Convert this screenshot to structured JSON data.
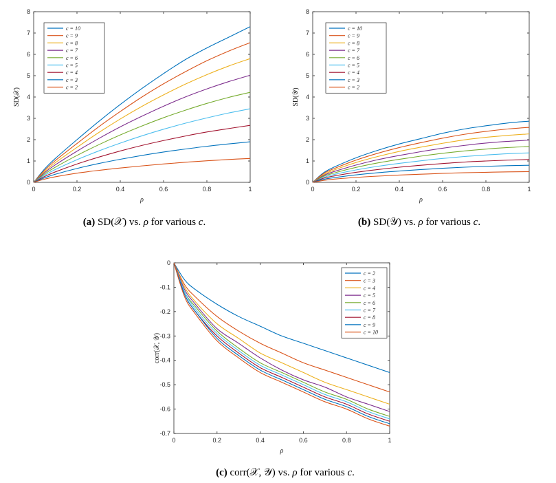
{
  "chart_data": [
    {
      "id": "a",
      "type": "line",
      "xlabel": "ρ",
      "ylabel": "SD(𝒳)",
      "xlim": [
        0,
        1
      ],
      "ylim": [
        0,
        8
      ],
      "xticks": [
        0,
        0.2,
        0.4,
        0.6,
        0.8,
        1
      ],
      "xtick_labels": [
        "0",
        "0.2",
        "0.4",
        "0.6",
        "0.8",
        "1"
      ],
      "yticks": [
        0,
        1,
        2,
        3,
        4,
        5,
        6,
        7,
        8
      ],
      "ytick_labels": [
        "0",
        "1",
        "2",
        "3",
        "4",
        "5",
        "6",
        "7",
        "8"
      ],
      "legend_position": "top-left",
      "x": [
        0,
        0.05,
        0.1,
        0.2,
        0.3,
        0.4,
        0.5,
        0.6,
        0.7,
        0.8,
        0.9,
        1
      ],
      "series": [
        {
          "name": "c = 10",
          "color": "#0072BD",
          "values": [
            0,
            0.62,
            1.12,
            2.0,
            2.85,
            3.65,
            4.4,
            5.1,
            5.75,
            6.3,
            6.8,
            7.3
          ]
        },
        {
          "name": "c = 9",
          "color": "#D95319",
          "values": [
            0,
            0.56,
            1.02,
            1.82,
            2.6,
            3.32,
            4.0,
            4.62,
            5.18,
            5.7,
            6.15,
            6.55
          ]
        },
        {
          "name": "c = 8",
          "color": "#EDB120",
          "values": [
            0,
            0.5,
            0.92,
            1.64,
            2.33,
            2.97,
            3.56,
            4.1,
            4.6,
            5.05,
            5.45,
            5.8
          ]
        },
        {
          "name": "c = 7",
          "color": "#7E2F8E",
          "values": [
            0,
            0.45,
            0.82,
            1.46,
            2.05,
            2.6,
            3.1,
            3.57,
            4.0,
            4.38,
            4.72,
            5.02
          ]
        },
        {
          "name": "c = 6",
          "color": "#77AC30",
          "values": [
            0,
            0.39,
            0.71,
            1.26,
            1.76,
            2.22,
            2.64,
            3.03,
            3.38,
            3.7,
            3.98,
            4.22
          ]
        },
        {
          "name": "c = 5",
          "color": "#4DBEEE",
          "values": [
            0,
            0.33,
            0.6,
            1.06,
            1.47,
            1.84,
            2.18,
            2.49,
            2.77,
            3.02,
            3.25,
            3.45
          ]
        },
        {
          "name": "c = 4",
          "color": "#A2142F",
          "values": [
            0,
            0.27,
            0.49,
            0.86,
            1.18,
            1.47,
            1.73,
            1.96,
            2.17,
            2.36,
            2.52,
            2.67
          ]
        },
        {
          "name": "c = 3",
          "color": "#0072BD",
          "values": [
            0,
            0.21,
            0.38,
            0.65,
            0.88,
            1.08,
            1.26,
            1.42,
            1.56,
            1.69,
            1.8,
            1.9
          ]
        },
        {
          "name": "c = 2",
          "color": "#D95319",
          "values": [
            0,
            0.15,
            0.26,
            0.43,
            0.56,
            0.67,
            0.77,
            0.86,
            0.94,
            1.01,
            1.07,
            1.12
          ]
        }
      ]
    },
    {
      "id": "b",
      "type": "line",
      "xlabel": "ρ",
      "ylabel": "SD(𝒴)",
      "xlim": [
        0,
        1
      ],
      "ylim": [
        0,
        8
      ],
      "xticks": [
        0,
        0.2,
        0.4,
        0.6,
        0.8,
        1
      ],
      "xtick_labels": [
        "0",
        "0.2",
        "0.4",
        "0.6",
        "0.8",
        "1"
      ],
      "yticks": [
        0,
        1,
        2,
        3,
        4,
        5,
        6,
        7,
        8
      ],
      "ytick_labels": [
        "0",
        "1",
        "2",
        "3",
        "4",
        "5",
        "6",
        "7",
        "8"
      ],
      "legend_position": "top-left",
      "x": [
        0,
        0.05,
        0.1,
        0.2,
        0.3,
        0.4,
        0.5,
        0.6,
        0.7,
        0.8,
        0.9,
        1
      ],
      "series": [
        {
          "name": "c = 10",
          "color": "#0072BD",
          "values": [
            0,
            0.45,
            0.72,
            1.15,
            1.5,
            1.8,
            2.05,
            2.3,
            2.5,
            2.65,
            2.78,
            2.87
          ]
        },
        {
          "name": "c = 9",
          "color": "#D95319",
          "values": [
            0,
            0.41,
            0.65,
            1.04,
            1.36,
            1.63,
            1.86,
            2.07,
            2.25,
            2.39,
            2.5,
            2.58
          ]
        },
        {
          "name": "c = 8",
          "color": "#EDB120",
          "values": [
            0,
            0.36,
            0.58,
            0.93,
            1.21,
            1.45,
            1.65,
            1.83,
            1.99,
            2.11,
            2.2,
            2.27
          ]
        },
        {
          "name": "c = 7",
          "color": "#7E2F8E",
          "values": [
            0,
            0.32,
            0.51,
            0.81,
            1.06,
            1.26,
            1.44,
            1.6,
            1.73,
            1.84,
            1.92,
            1.98
          ]
        },
        {
          "name": "c = 6",
          "color": "#77AC30",
          "values": [
            0,
            0.28,
            0.44,
            0.7,
            0.91,
            1.08,
            1.23,
            1.36,
            1.47,
            1.56,
            1.63,
            1.68
          ]
        },
        {
          "name": "c = 5",
          "color": "#4DBEEE",
          "values": [
            0,
            0.23,
            0.37,
            0.58,
            0.75,
            0.89,
            1.01,
            1.12,
            1.21,
            1.28,
            1.34,
            1.38
          ]
        },
        {
          "name": "c = 4",
          "color": "#A2142F",
          "values": [
            0,
            0.19,
            0.3,
            0.47,
            0.6,
            0.71,
            0.8,
            0.88,
            0.95,
            1.0,
            1.04,
            1.07
          ]
        },
        {
          "name": "c = 3",
          "color": "#0072BD",
          "values": [
            0,
            0.14,
            0.22,
            0.35,
            0.45,
            0.53,
            0.6,
            0.66,
            0.71,
            0.75,
            0.78,
            0.8
          ]
        },
        {
          "name": "c = 2",
          "color": "#D95319",
          "values": [
            0,
            0.09,
            0.15,
            0.23,
            0.29,
            0.34,
            0.38,
            0.42,
            0.45,
            0.47,
            0.49,
            0.5
          ]
        }
      ]
    },
    {
      "id": "c",
      "type": "line",
      "xlabel": "ρ",
      "ylabel": "corr(𝒳, 𝒴)",
      "xlim": [
        0,
        1
      ],
      "ylim": [
        -0.7,
        0
      ],
      "xticks": [
        0,
        0.2,
        0.4,
        0.6,
        0.8,
        1
      ],
      "xtick_labels": [
        "0",
        "0.2",
        "0.4",
        "0.6",
        "0.8",
        "1"
      ],
      "yticks": [
        0,
        -0.1,
        -0.2,
        -0.3,
        -0.4,
        -0.5,
        -0.6,
        -0.7
      ],
      "ytick_labels": [
        "0",
        "-0.1",
        "-0.2",
        "-0.3",
        "-0.4",
        "-0.5",
        "-0.6",
        "-0.7"
      ],
      "legend_position": "top-right",
      "x": [
        0,
        0.05,
        0.1,
        0.2,
        0.3,
        0.4,
        0.5,
        0.6,
        0.7,
        0.8,
        0.9,
        1
      ],
      "series": [
        {
          "name": "c = 2",
          "color": "#0072BD",
          "values": [
            0,
            -0.07,
            -0.11,
            -0.17,
            -0.22,
            -0.26,
            -0.3,
            -0.33,
            -0.36,
            -0.39,
            -0.42,
            -0.45
          ]
        },
        {
          "name": "c = 3",
          "color": "#D95319",
          "values": [
            0,
            -0.09,
            -0.14,
            -0.22,
            -0.28,
            -0.33,
            -0.37,
            -0.41,
            -0.44,
            -0.47,
            -0.5,
            -0.53
          ]
        },
        {
          "name": "c = 4",
          "color": "#EDB120",
          "values": [
            0,
            -0.1,
            -0.16,
            -0.25,
            -0.31,
            -0.37,
            -0.41,
            -0.45,
            -0.49,
            -0.52,
            -0.55,
            -0.58
          ]
        },
        {
          "name": "c = 5",
          "color": "#7E2F8E",
          "values": [
            0,
            -0.11,
            -0.17,
            -0.27,
            -0.33,
            -0.39,
            -0.44,
            -0.48,
            -0.51,
            -0.55,
            -0.58,
            -0.61
          ]
        },
        {
          "name": "c = 6",
          "color": "#77AC30",
          "values": [
            0,
            -0.12,
            -0.18,
            -0.28,
            -0.35,
            -0.41,
            -0.45,
            -0.49,
            -0.53,
            -0.56,
            -0.6,
            -0.63
          ]
        },
        {
          "name": "c = 7",
          "color": "#4DBEEE",
          "values": [
            0,
            -0.12,
            -0.19,
            -0.29,
            -0.36,
            -0.42,
            -0.46,
            -0.5,
            -0.54,
            -0.57,
            -0.61,
            -0.64
          ]
        },
        {
          "name": "c = 8",
          "color": "#A2142F",
          "values": [
            0,
            -0.13,
            -0.2,
            -0.3,
            -0.37,
            -0.43,
            -0.47,
            -0.51,
            -0.55,
            -0.58,
            -0.62,
            -0.65
          ]
        },
        {
          "name": "c = 9",
          "color": "#0072BD",
          "values": [
            0,
            -0.13,
            -0.2,
            -0.31,
            -0.38,
            -0.44,
            -0.48,
            -0.52,
            -0.56,
            -0.59,
            -0.63,
            -0.66
          ]
        },
        {
          "name": "c = 10",
          "color": "#D95319",
          "values": [
            0,
            -0.14,
            -0.21,
            -0.32,
            -0.39,
            -0.45,
            -0.49,
            -0.53,
            -0.57,
            -0.6,
            -0.64,
            -0.67
          ]
        }
      ]
    }
  ],
  "captions": {
    "a": {
      "label": "(a)",
      "text_before": " SD(𝒳) vs. ",
      "rho": "ρ",
      "text_mid": " for various ",
      "c": "c",
      "text_end": "."
    },
    "b": {
      "label": "(b)",
      "text_before": " SD(𝒴) vs. ",
      "rho": "ρ",
      "text_mid": " for various ",
      "c": "c",
      "text_end": "."
    },
    "c": {
      "label": "(c)",
      "text_before": " corr(𝒳, 𝒴) vs. ",
      "rho": "ρ",
      "text_mid": " for various ",
      "c": "c",
      "text_end": "."
    }
  }
}
